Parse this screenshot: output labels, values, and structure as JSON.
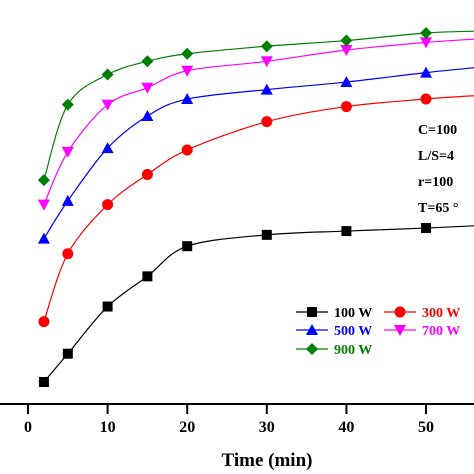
{
  "chart_data": {
    "type": "line",
    "title": "",
    "xlabel": "Time (min)",
    "ylabel": "",
    "xlim": [
      -2,
      57
    ],
    "ylim": [
      0,
      100
    ],
    "x_ticks": [
      0,
      10,
      20,
      30,
      40,
      50
    ],
    "x_tick_labels": [
      "0",
      "10",
      "20",
      "30",
      "40",
      "50"
    ],
    "grid": false,
    "legend_position": "bottom-right",
    "x": [
      2,
      5,
      10,
      15,
      20,
      30,
      40,
      50,
      57
    ],
    "series": [
      {
        "name": "100 W",
        "color": "#000000",
        "marker": "square",
        "values": [
          7,
          14.5,
          27,
          35,
          43,
          46,
          47,
          47.8,
          48.5
        ]
      },
      {
        "name": "300 W",
        "color": "#ff0000",
        "marker": "circle",
        "values": [
          23,
          41,
          54,
          62,
          68.5,
          76,
          80,
          82,
          83
        ]
      },
      {
        "name": "500 W",
        "color": "#0000ff",
        "marker": "triangle-up",
        "values": [
          45,
          55,
          69,
          77.5,
          82,
          84.5,
          86.5,
          89,
          90.5
        ]
      },
      {
        "name": "700 W",
        "color": "#ff00ff",
        "marker": "triangle-down",
        "values": [
          54,
          68,
          80.5,
          85,
          89.5,
          92,
          95,
          97,
          98
        ]
      },
      {
        "name": "900 W",
        "color": "#008000",
        "marker": "diamond",
        "values": [
          60.5,
          80.5,
          88.5,
          92,
          94,
          96,
          97.5,
          99.5,
          100
        ]
      }
    ],
    "annotations": [
      "C=100",
      "L/S=4",
      "r=100",
      "T=65 °"
    ]
  }
}
